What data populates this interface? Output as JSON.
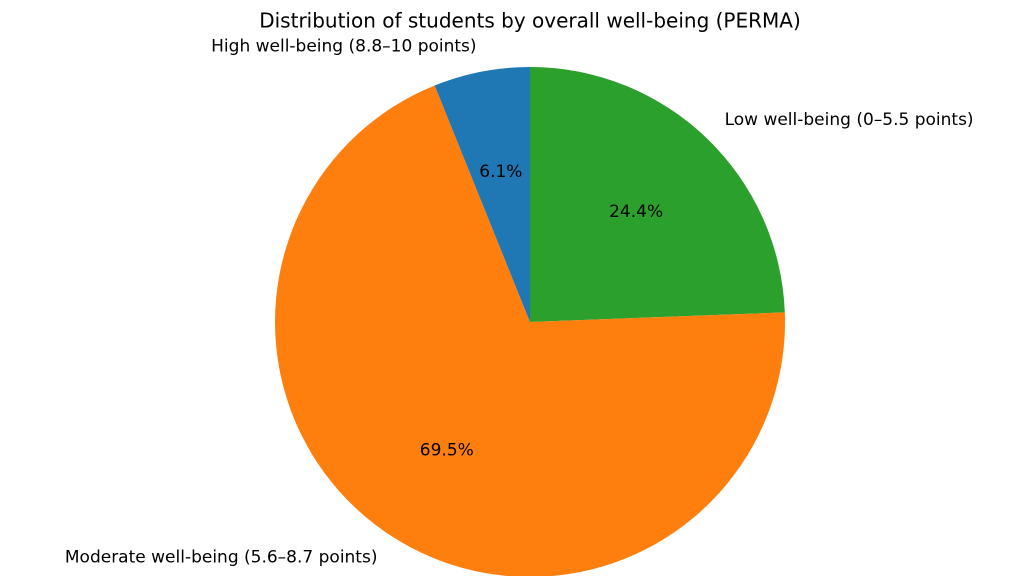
{
  "chart_data": {
    "type": "pie",
    "title": "Distribution of students by overall well-being (PERMA)",
    "categories": [
      "Low well-being (0–5.5 points)",
      "Moderate well-being (5.6–8.7 points)",
      "High well-being (8.8–10 points)"
    ],
    "values": [
      24.4,
      69.5,
      6.1
    ],
    "value_labels": [
      "24.4%",
      "69.5%",
      "6.1%"
    ],
    "colors": [
      "#2ca02c",
      "#ff7f0e",
      "#1f77b4"
    ],
    "start_angle": 90,
    "clockwise": true
  }
}
